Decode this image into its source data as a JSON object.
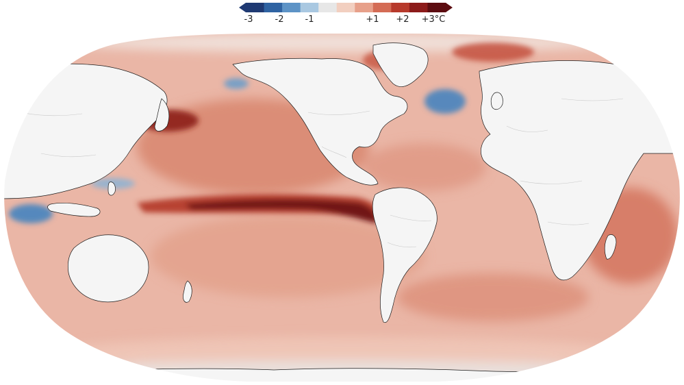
{
  "legend": {
    "unit": "°C",
    "ticks": [
      "-3",
      "-2",
      "-1",
      "+1",
      "+2",
      "+3°C"
    ],
    "tick_values": [
      -3,
      -2,
      -1,
      1,
      2,
      3
    ],
    "range": [
      -3.3,
      3.3
    ],
    "colors": [
      "#1f3a73",
      "#2f63a2",
      "#5d93c6",
      "#a9c8e1",
      "#e7e7e7",
      "#f2cfc0",
      "#e7a08a",
      "#d46c55",
      "#b73a2c",
      "#8c1b1a",
      "#5c0c10"
    ]
  },
  "map": {
    "land_color": "#f5f5f5",
    "border_color": "#c8c8c8",
    "coast_color": "#1a1a1a",
    "ocean_base_color": "#eab6a6"
  }
}
